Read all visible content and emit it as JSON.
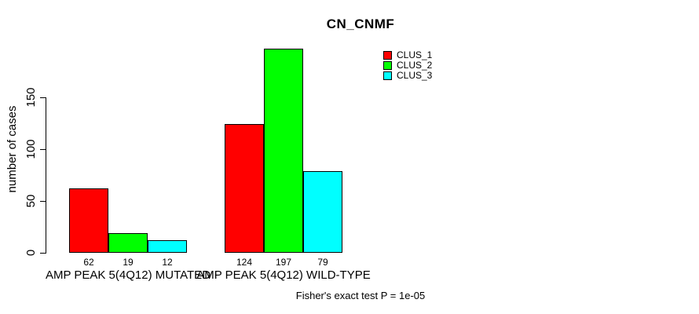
{
  "title": "CN_CNMF",
  "y_axis_label": "number of cases",
  "annotation": "Fisher's exact test P = 1e-05",
  "colors": {
    "clus_1": "#ff0000",
    "clus_2": "#00ff00",
    "clus_3": "#00ffff",
    "axis": "#000000",
    "background": "#ffffff",
    "text": "#000000"
  },
  "legend": {
    "items": [
      {
        "label": "CLUS_1",
        "color": "#ff0000"
      },
      {
        "label": "CLUS_2",
        "color": "#00ff00"
      },
      {
        "label": "CLUS_3",
        "color": "#00ffff"
      }
    ]
  },
  "chart_data": {
    "type": "bar",
    "title": "CN_CNMF",
    "ylabel": "number of cases",
    "xlabel": "",
    "categories": [
      "AMP PEAK 5(4Q12) MUTATED",
      "AMP PEAK 5(4Q12) WILD-TYPE"
    ],
    "series": [
      {
        "name": "CLUS_1",
        "color": "#ff0000",
        "values": [
          62,
          124
        ]
      },
      {
        "name": "CLUS_2",
        "color": "#00ff00",
        "values": [
          19,
          197
        ]
      },
      {
        "name": "CLUS_3",
        "color": "#00ffff",
        "values": [
          12,
          79
        ]
      }
    ],
    "value_labels": [
      [
        62,
        19,
        12
      ],
      [
        124,
        197,
        79
      ]
    ],
    "yticks": [
      0,
      50,
      100,
      150
    ],
    "ylim": [
      0,
      200
    ],
    "grid": false,
    "legend_position": "top-right-inside",
    "annotation": "Fisher's exact test P = 1e-05"
  }
}
